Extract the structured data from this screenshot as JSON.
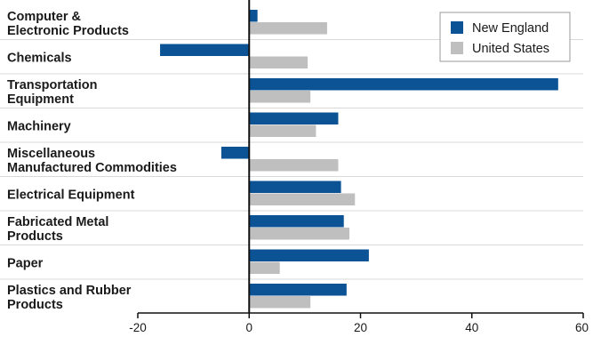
{
  "chart_data": {
    "type": "bar",
    "orientation": "horizontal",
    "categories": [
      [
        "Computer &",
        "Electronic Products"
      ],
      [
        "Chemicals"
      ],
      [
        "Transportation",
        "Equipment"
      ],
      [
        "Machinery"
      ],
      [
        "Miscellaneous",
        "Manufactured Commodities"
      ],
      [
        "Electrical Equipment"
      ],
      [
        "Fabricated Metal",
        "Products"
      ],
      [
        "Paper"
      ],
      [
        "Plastics and Rubber",
        "Products"
      ]
    ],
    "series": [
      {
        "name": "New England",
        "color": "#0b5394",
        "values": [
          1.5,
          -16,
          55.5,
          16,
          -5,
          16.5,
          17,
          21.5,
          17.5
        ]
      },
      {
        "name": "United States",
        "color": "#bfbfbf",
        "values": [
          14,
          10.5,
          11,
          12,
          16,
          19,
          18,
          5.5,
          11
        ]
      }
    ],
    "xlim": [
      -20,
      60
    ],
    "xticks": [
      "-20",
      "0",
      "20",
      "40",
      "60"
    ],
    "xlabel": "",
    "ylabel": "",
    "title": "",
    "grid": "horizontal separators",
    "legend_position": "top-right"
  }
}
